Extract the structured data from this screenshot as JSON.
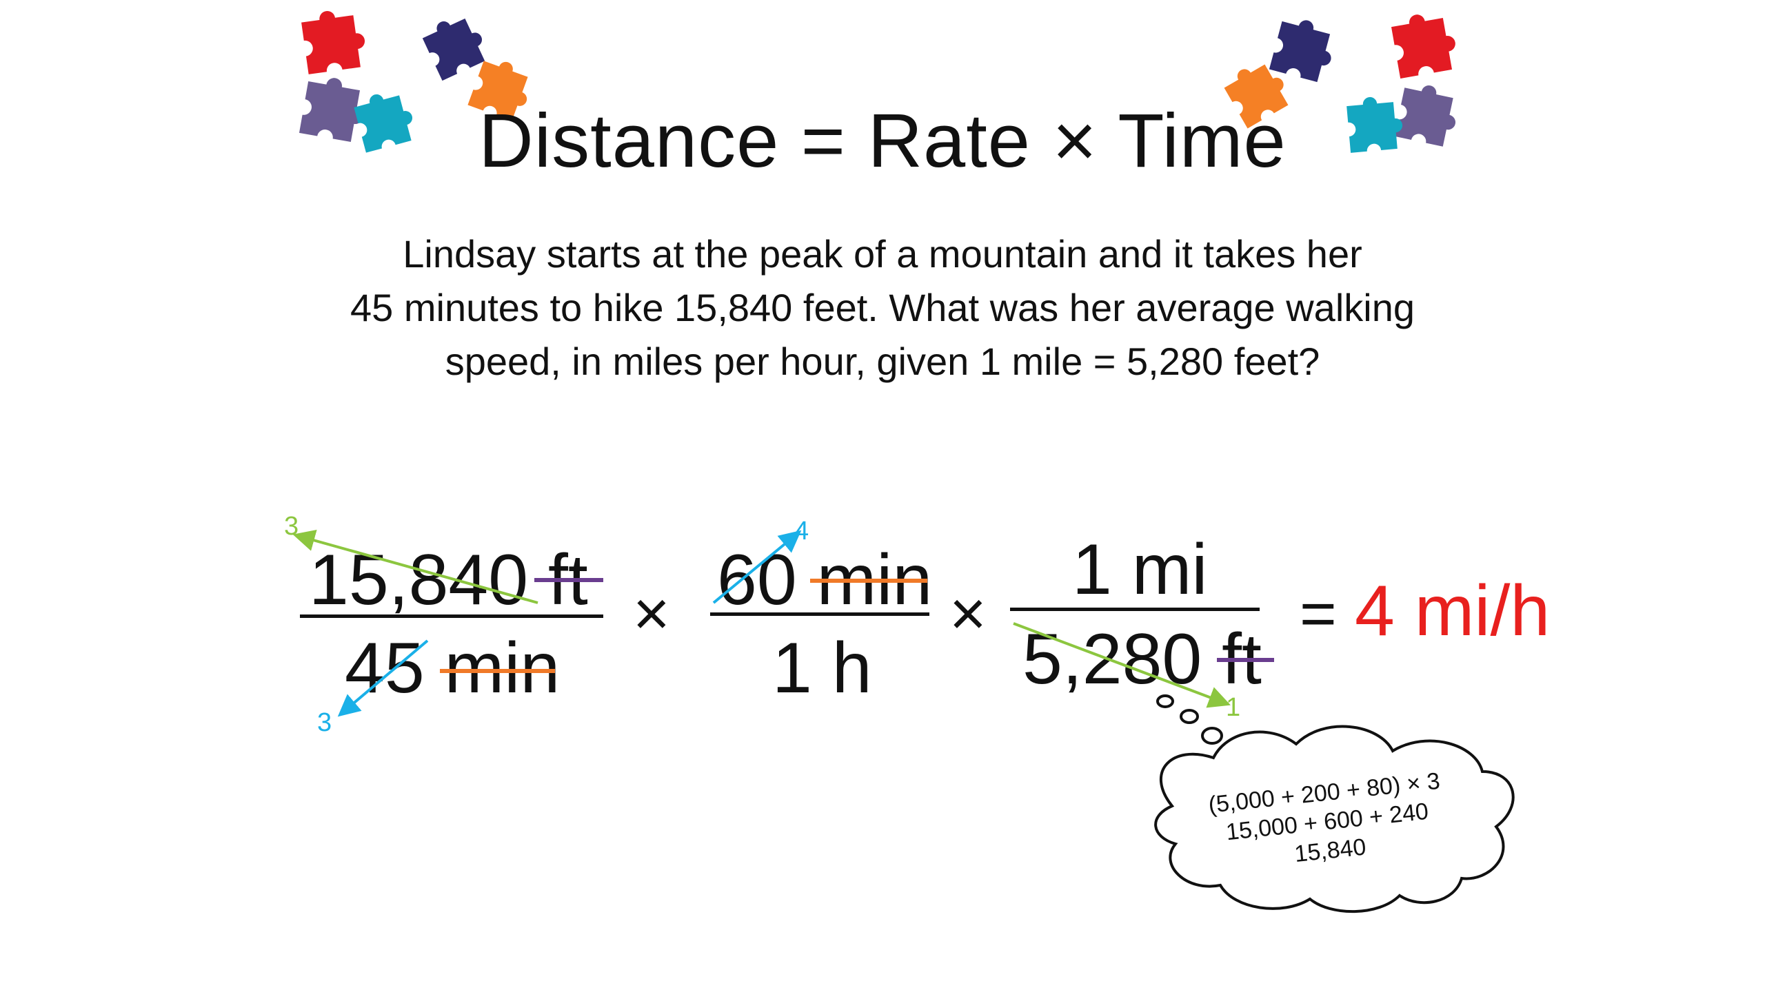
{
  "slide": {
    "title": "Distance = Rate × Time",
    "problem_lines": [
      "Lindsay starts at the peak of a mountain and it takes her",
      "45 minutes to hike 15,840 feet. What was her average walking",
      "speed, in miles per hour, given 1 mile = 5,280 feet?"
    ]
  },
  "equation": {
    "frac1": {
      "numerator": "15,840 ft",
      "denominator": "45 min"
    },
    "frac2": {
      "numerator": "60 min",
      "denominator": "1 h"
    },
    "frac3": {
      "numerator": "1 mi",
      "denominator": "5,280 ft"
    },
    "times": "×",
    "equals": "=",
    "answer": "4 mi/h"
  },
  "annotations": {
    "green_top": "3",
    "green_bottom": "1",
    "blue_top": "4",
    "blue_bottom": "3"
  },
  "thought_cloud": {
    "lines": [
      "(5,000 + 200 + 80) × 3",
      "15,000 + 600 + 240",
      "15,840"
    ]
  },
  "colors": {
    "answer": "#e8201e",
    "green": "#8cc63f",
    "blue": "#1ab0e8",
    "orange": "#f07a28",
    "purple": "#6a3d8f",
    "puzzle_red": "#e31b23",
    "puzzle_navy": "#2e2b6f",
    "puzzle_orange": "#f58025",
    "puzzle_teal": "#14a7c1",
    "puzzle_purple": "#6a5c92"
  },
  "icons": [
    "puzzle-piece-icon"
  ]
}
